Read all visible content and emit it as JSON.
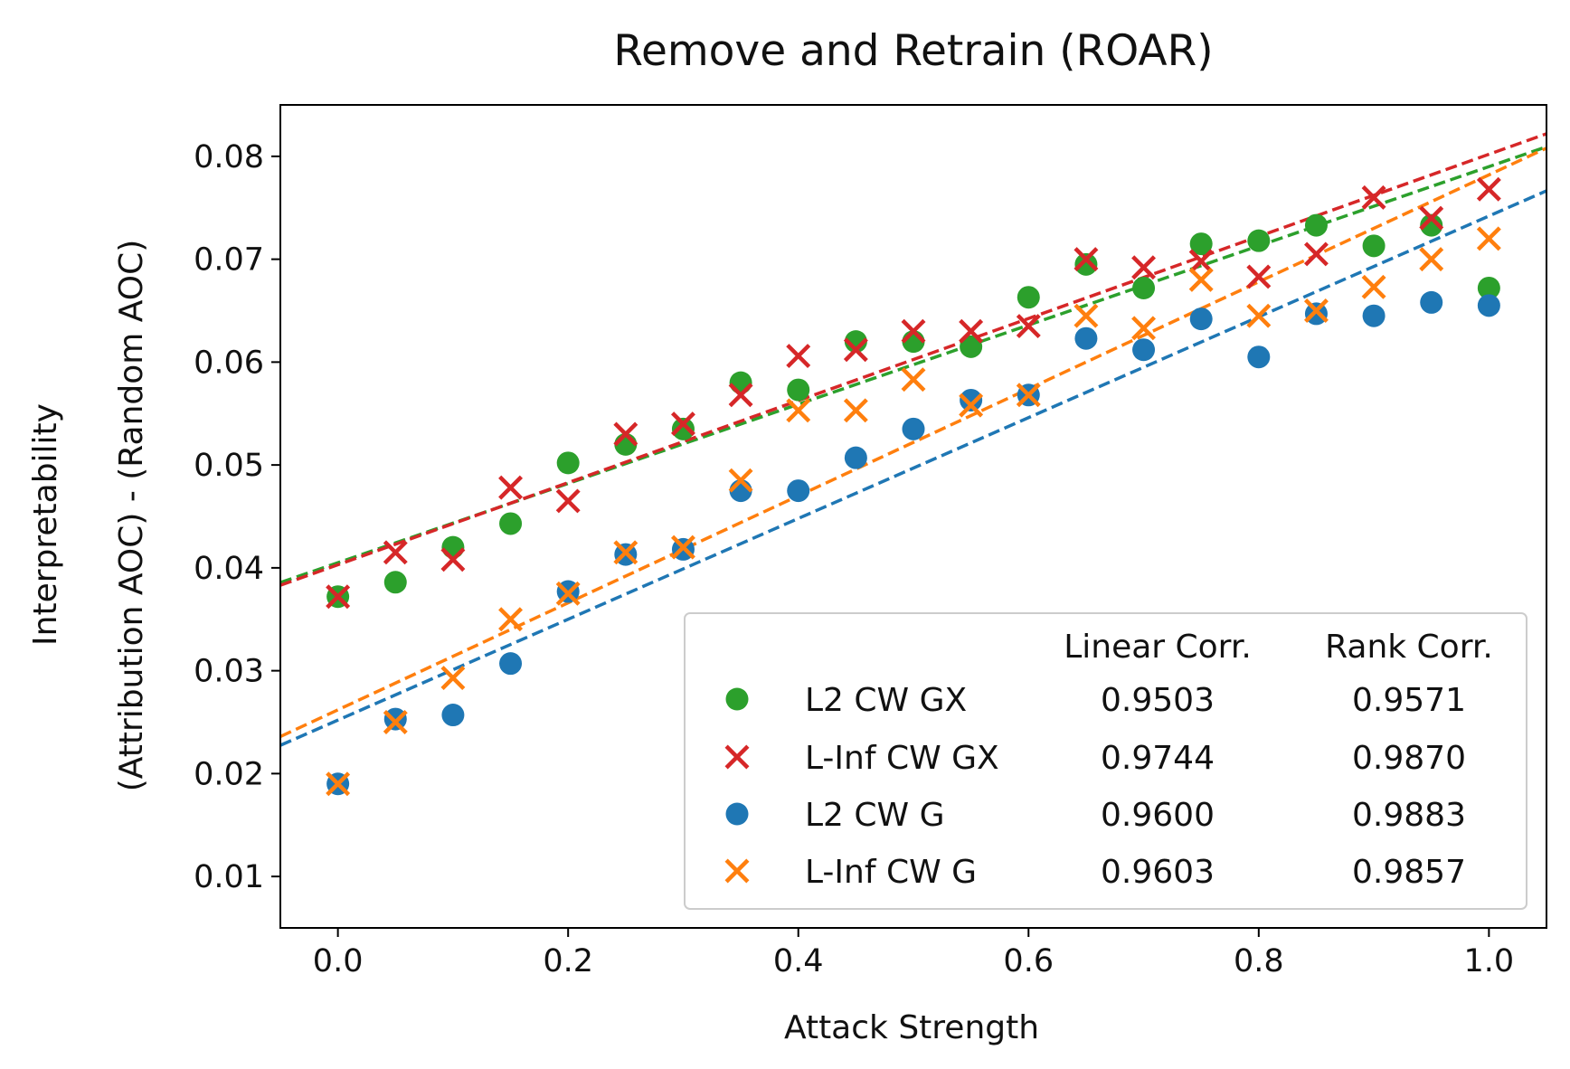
{
  "chart_data": {
    "type": "scatter",
    "title": "Remove and Retrain (ROAR)",
    "xlabel": "Attack Strength",
    "ylabel_lines": [
      "Interpretability",
      "(Attribution AOC) - (Random AOC)"
    ],
    "xlim": [
      -0.05,
      1.05
    ],
    "ylim": [
      0.005,
      0.085
    ],
    "x_ticks": [
      0.0,
      0.2,
      0.4,
      0.6,
      0.8,
      1.0
    ],
    "x_tick_labels": [
      "0.0",
      "0.2",
      "0.4",
      "0.6",
      "0.8",
      "1.0"
    ],
    "y_ticks": [
      0.01,
      0.02,
      0.03,
      0.04,
      0.05,
      0.06,
      0.07,
      0.08
    ],
    "y_tick_labels": [
      "0.01",
      "0.02",
      "0.03",
      "0.04",
      "0.05",
      "0.06",
      "0.07",
      "0.08"
    ],
    "grid": false,
    "legend_position": "lower-right",
    "legend_columns": [
      "Linear Corr.",
      "Rank Corr."
    ],
    "x": [
      0.0,
      0.05,
      0.1,
      0.15,
      0.2,
      0.25,
      0.3,
      0.35,
      0.4,
      0.45,
      0.5,
      0.55,
      0.6,
      0.65,
      0.7,
      0.75,
      0.8,
      0.85,
      0.9,
      0.95,
      1.0
    ],
    "series": [
      {
        "name": "L2 CW GX",
        "marker": "circle",
        "color": "#2ca02c",
        "linear_corr": "0.9503",
        "rank_corr": "0.9571",
        "values": [
          0.0372,
          0.0386,
          0.042,
          0.0443,
          0.0502,
          0.052,
          0.0535,
          0.058,
          0.0573,
          0.062,
          0.062,
          0.0615,
          0.0663,
          0.0695,
          0.0672,
          0.0715,
          0.0718,
          0.0733,
          0.0713,
          0.0733,
          0.0672
        ],
        "fit_line": [
          0.0405,
          0.079
        ]
      },
      {
        "name": "L-Inf CW GX",
        "marker": "x",
        "color": "#d62728",
        "linear_corr": "0.9744",
        "rank_corr": "0.9870",
        "values": [
          0.0372,
          0.0415,
          0.0408,
          0.0478,
          0.0465,
          0.053,
          0.054,
          0.0568,
          0.0606,
          0.0612,
          0.063,
          0.063,
          0.0635,
          0.07,
          0.0692,
          0.0698,
          0.0683,
          0.0705,
          0.076,
          0.074,
          0.0768
        ],
        "fit_line": [
          0.0403,
          0.0802
        ]
      },
      {
        "name": "L2 CW G",
        "marker": "circle",
        "color": "#1f77b4",
        "linear_corr": "0.9600",
        "rank_corr": "0.9883",
        "values": [
          0.019,
          0.0253,
          0.0257,
          0.0307,
          0.0377,
          0.0413,
          0.0418,
          0.0475,
          0.0475,
          0.0507,
          0.0535,
          0.0563,
          0.0568,
          0.0623,
          0.0612,
          0.0642,
          0.0605,
          0.0647,
          0.0645,
          0.0658,
          0.0655
        ],
        "fit_line": [
          0.0252,
          0.0742
        ]
      },
      {
        "name": "L-Inf CW G",
        "marker": "x",
        "color": "#ff7f0e",
        "linear_corr": "0.9603",
        "rank_corr": "0.9857",
        "values": [
          0.019,
          0.025,
          0.0293,
          0.035,
          0.0375,
          0.0415,
          0.042,
          0.0485,
          0.0553,
          0.0553,
          0.0583,
          0.0558,
          0.0568,
          0.0645,
          0.0633,
          0.068,
          0.0645,
          0.065,
          0.0673,
          0.07,
          0.072
        ],
        "fit_line": [
          0.0262,
          0.0782
        ]
      }
    ]
  }
}
